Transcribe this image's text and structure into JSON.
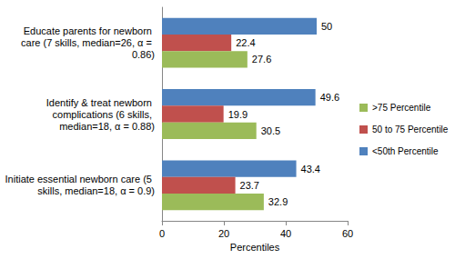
{
  "chart_data": {
    "type": "bar",
    "orientation": "horizontal",
    "categories": [
      "Initiate essential newborn care (5 skills, median=18, α = 0.9)",
      "Identify & treat newborn complications (6 skills, median=18, α = 0.88)",
      "Educate parents for newborn care (7 skills, median=26, α = 0.86)"
    ],
    "series": [
      {
        "name": ">75 Percentile",
        "color": "#9bbb59",
        "values": [
          32.9,
          30.5,
          27.6
        ]
      },
      {
        "name": "50 to 75 Percentile",
        "color": "#c0504d",
        "values": [
          23.7,
          19.9,
          22.4
        ]
      },
      {
        "name": "<50th Percentile",
        "color": "#4f81bd",
        "values": [
          43.4,
          49.6,
          50
        ]
      }
    ],
    "x_label": "Percentiles",
    "xlim": [
      0,
      60
    ],
    "xticks": [
      0,
      20,
      40,
      60
    ],
    "grid": false,
    "legend": "right",
    "data_labels": true
  }
}
